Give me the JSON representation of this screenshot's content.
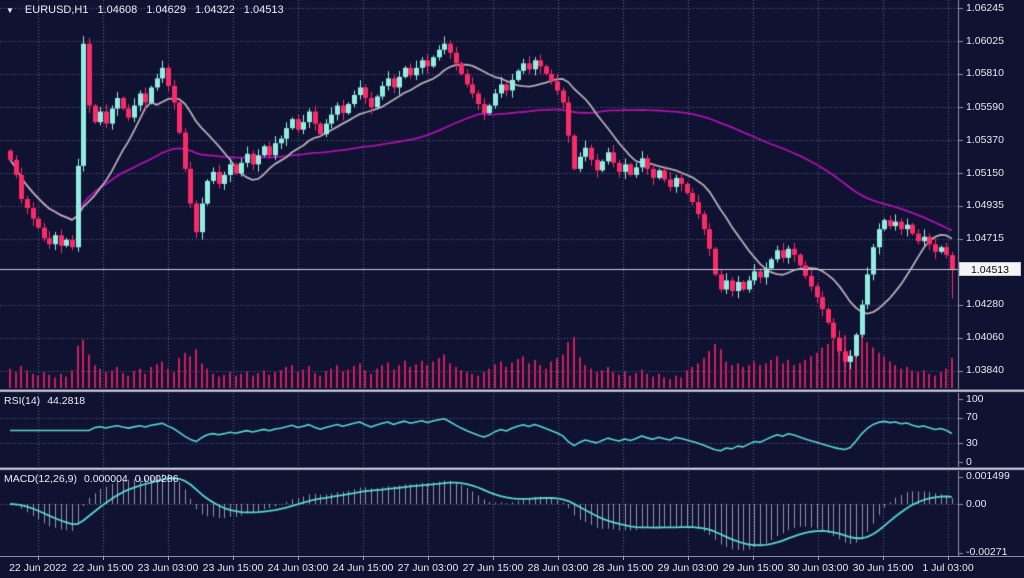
{
  "header": {
    "symbol": "EURUSD,H1",
    "open": "1.04608",
    "high": "1.04629",
    "low": "1.04322",
    "close": "1.04513"
  },
  "price_tag": {
    "text": "1.04513",
    "price": 1.04513
  },
  "main_axis": {
    "ticks": [
      {
        "text": "1.06245",
        "price": 1.06245
      },
      {
        "text": "1.06025",
        "price": 1.06025
      },
      {
        "text": "1.05810",
        "price": 1.0581
      },
      {
        "text": "1.05590",
        "price": 1.0559
      },
      {
        "text": "1.05370",
        "price": 1.0537
      },
      {
        "text": "1.05150",
        "price": 1.0515
      },
      {
        "text": "1.04935",
        "price": 1.04935
      },
      {
        "text": "1.04715",
        "price": 1.04715
      },
      {
        "text": "1.04280",
        "price": 1.0428
      },
      {
        "text": "1.04060",
        "price": 1.0406
      },
      {
        "text": "1.03840",
        "price": 1.0384
      }
    ]
  },
  "rsi_panel": {
    "label": "RSI(14)",
    "value": "44.2818",
    "ticks": [
      {
        "text": "100",
        "v": 100,
        "dashed": false
      },
      {
        "text": "70",
        "v": 70,
        "dashed": true
      },
      {
        "text": "30",
        "v": 30,
        "dashed": true
      },
      {
        "text": "0",
        "v": 0,
        "dashed": false
      }
    ]
  },
  "macd_panel": {
    "label": "MACD(12,26,9)",
    "value1": "0.000004",
    "value2": "0.000286",
    "ticks": [
      {
        "text": "0.001499",
        "v": 0.001499,
        "dashed": false
      },
      {
        "text": "0.00",
        "v": 0,
        "dashed": true
      },
      {
        "text": "-0.00271",
        "v": -0.00271,
        "dashed": false
      }
    ]
  },
  "time_axis": [
    "22 Jun 2022",
    "22 Jun 15:00",
    "23 Jun 03:00",
    "23 Jun 15:00",
    "24 Jun 03:00",
    "24 Jun 15:00",
    "27 Jun 03:00",
    "27 Jun 15:00",
    "28 Jun 03:00",
    "28 Jun 15:00",
    "29 Jun 03:00",
    "29 Jun 15:00",
    "30 Jun 03:00",
    "30 Jun 15:00",
    "1 Jul 03:00"
  ],
  "colors": {
    "background": "#101231",
    "grid": "rgba(168,174,198,0.50)",
    "bull": "#93ede2",
    "bear": "#f92b69",
    "volume": "#c81e5f",
    "ma_fast": "#b3acb8",
    "ma_slow": "#ae12ae",
    "indicator_line": "#55d7d1",
    "macd_hist": "rgba(185,191,212,0.75)",
    "price_line": "#c4c8d6",
    "border": "#8b90a6",
    "text": "#e8e9f2",
    "tag_bg": "#f4f4f6",
    "tag_text": "#0a0a0a"
  },
  "chart_data": {
    "type": "candlestick",
    "title": "EURUSD,H1",
    "x_axis_labels": [
      "22 Jun 2022",
      "22 Jun 15:00",
      "23 Jun 03:00",
      "23 Jun 15:00",
      "24 Jun 03:00",
      "24 Jun 15:00",
      "27 Jun 03:00",
      "27 Jun 15:00",
      "28 Jun 03:00",
      "28 Jun 15:00",
      "29 Jun 03:00",
      "29 Jun 15:00",
      "30 Jun 03:00",
      "30 Jun 15:00",
      "1 Jul 03:00"
    ],
    "y_axis": {
      "range": [
        1.0372,
        1.063
      ],
      "tick_values": [
        1.06245,
        1.06025,
        1.0581,
        1.0559,
        1.0537,
        1.0515,
        1.04935,
        1.04715,
        1.0428,
        1.0406,
        1.0384
      ]
    },
    "last_candle": {
      "open": 1.04608,
      "high": 1.04629,
      "low": 1.04322,
      "close": 1.04513
    },
    "spike_candle": {
      "index": 13,
      "high": 1.0606
    },
    "closes": [
      1.0524,
      1.0514,
      1.0498,
      1.0492,
      1.0485,
      1.0479,
      1.0472,
      1.0468,
      1.0474,
      1.0467,
      1.0471,
      1.0466,
      1.052,
      1.0601,
      1.056,
      1.0549,
      1.0556,
      1.0548,
      1.0558,
      1.0565,
      1.0558,
      1.0552,
      1.056,
      1.0568,
      1.0562,
      1.0572,
      1.0578,
      1.0585,
      1.0573,
      1.0562,
      1.0542,
      1.0518,
      1.0495,
      1.0476,
      1.0495,
      1.051,
      1.0516,
      1.0508,
      1.0514,
      1.0521,
      1.0515,
      1.0522,
      1.0528,
      1.0521,
      1.0527,
      1.0533,
      1.0527,
      1.0535,
      1.0538,
      1.0545,
      1.0551,
      1.0544,
      1.0549,
      1.0556,
      1.0548,
      1.0541,
      1.0548,
      1.0554,
      1.056,
      1.0555,
      1.0561,
      1.0567,
      1.0572,
      1.0565,
      1.0559,
      1.0566,
      1.0573,
      1.0578,
      1.0572,
      1.0579,
      1.0585,
      1.058,
      1.0585,
      1.059,
      1.0586,
      1.0592,
      1.0597,
      1.0601,
      1.0595,
      1.0588,
      1.0581,
      1.0574,
      1.0568,
      1.0561,
      1.0555,
      1.056,
      1.0568,
      1.0574,
      1.057,
      1.0577,
      1.0583,
      1.0588,
      1.0584,
      1.059,
      1.0586,
      1.0581,
      1.0576,
      1.057,
      1.0562,
      1.054,
      1.0518,
      1.0526,
      1.0532,
      1.0524,
      1.0517,
      1.0523,
      1.0529,
      1.0522,
      1.0516,
      1.0521,
      1.0514,
      1.0519,
      1.0525,
      1.0518,
      1.0512,
      1.0517,
      1.0511,
      1.0506,
      1.0512,
      1.0508,
      1.0502,
      1.0496,
      1.0488,
      1.0478,
      1.0465,
      1.0448,
      1.0438,
      1.0444,
      1.0437,
      1.0443,
      1.0438,
      1.0444,
      1.045,
      1.0446,
      1.0452,
      1.0458,
      1.0464,
      1.0459,
      1.0465,
      1.0461,
      1.0454,
      1.0447,
      1.044,
      1.0433,
      1.0425,
      1.0416,
      1.0406,
      1.0397,
      1.039,
      1.0394,
      1.0408,
      1.0428,
      1.0448,
      1.0466,
      1.0478,
      1.0484,
      1.048,
      1.0483,
      1.0478,
      1.0481,
      1.0475,
      1.047,
      1.0473,
      1.0468,
      1.0463,
      1.0466,
      1.0461,
      1.04513
    ],
    "volumes": [
      22,
      18,
      25,
      20,
      16,
      14,
      18,
      15,
      12,
      16,
      13,
      20,
      48,
      55,
      38,
      26,
      22,
      18,
      20,
      24,
      17,
      14,
      19,
      22,
      16,
      24,
      27,
      30,
      22,
      18,
      34,
      40,
      36,
      44,
      28,
      22,
      16,
      13,
      15,
      18,
      14,
      16,
      19,
      14,
      17,
      20,
      15,
      18,
      20,
      24,
      26,
      18,
      21,
      25,
      17,
      14,
      19,
      22,
      26,
      19,
      21,
      25,
      28,
      20,
      16,
      22,
      26,
      29,
      21,
      26,
      31,
      24,
      27,
      31,
      26,
      30,
      34,
      38,
      28,
      24,
      20,
      18,
      16,
      14,
      18,
      22,
      27,
      30,
      24,
      29,
      33,
      36,
      28,
      32,
      26,
      22,
      30,
      34,
      38,
      52,
      58,
      35,
      26,
      22,
      18,
      20,
      24,
      18,
      15,
      19,
      14,
      17,
      21,
      16,
      13,
      16,
      12,
      10,
      14,
      12,
      20,
      24,
      28,
      34,
      42,
      50,
      44,
      30,
      26,
      28,
      24,
      26,
      30,
      26,
      28,
      32,
      36,
      28,
      32,
      26,
      28,
      32,
      36,
      40,
      46,
      50,
      54,
      58,
      60,
      42,
      55,
      60,
      52,
      46,
      40,
      36,
      30,
      26,
      22,
      24,
      20,
      18,
      20,
      16,
      14,
      18,
      22,
      34
    ],
    "overlays": [
      {
        "name": "ma-fast",
        "period": 13
      },
      {
        "name": "ma-slow",
        "period": 72
      }
    ],
    "panels": [
      {
        "name": "RSI",
        "params": "14",
        "last_value": 44.2818,
        "levels": [
          70,
          30
        ],
        "range": [
          0,
          100
        ]
      },
      {
        "name": "MACD",
        "params": "12,26,9",
        "last_values": [
          4e-06,
          0.000286
        ],
        "range": [
          -0.00271,
          0.001499
        ]
      }
    ]
  }
}
